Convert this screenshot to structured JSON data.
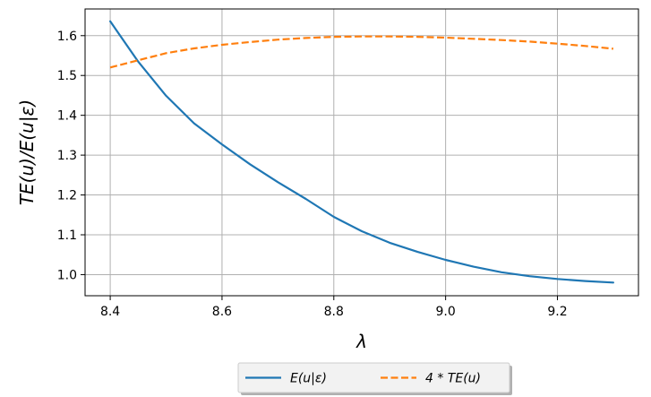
{
  "chart_data": {
    "type": "line",
    "title": "",
    "xlabel": "λ",
    "ylabel": "TE(u)/E(u|ε)",
    "xlim": [
      8.355,
      9.345
    ],
    "ylim": [
      0.947,
      1.667
    ],
    "x_ticks": [
      8.4,
      8.6,
      8.8,
      9.0,
      9.2
    ],
    "x_tick_labels": [
      "8.4",
      "8.6",
      "8.8",
      "9.0",
      "9.2"
    ],
    "y_ticks": [
      1.0,
      1.1,
      1.2,
      1.3,
      1.4,
      1.5,
      1.6
    ],
    "y_tick_labels": [
      "1.0",
      "1.1",
      "1.2",
      "1.3",
      "1.4",
      "1.5",
      "1.6"
    ],
    "grid": true,
    "legend_position": "below-center",
    "series": [
      {
        "name": "E(u|ε)",
        "color": "#1f77b4",
        "dash": "solid",
        "x": [
          8.4,
          8.45,
          8.5,
          8.55,
          8.6,
          8.65,
          8.7,
          8.75,
          8.8,
          8.85,
          8.9,
          8.95,
          9.0,
          9.05,
          9.1,
          9.15,
          9.2,
          9.25,
          9.3
        ],
        "values": [
          1.636,
          1.535,
          1.449,
          1.38,
          1.327,
          1.277,
          1.232,
          1.19,
          1.145,
          1.109,
          1.08,
          1.057,
          1.037,
          1.02,
          1.006,
          0.996,
          0.989,
          0.984,
          0.98
        ]
      },
      {
        "name": "4 * TE(u)",
        "color": "#ff7f0e",
        "dash": "dashed",
        "x": [
          8.4,
          8.45,
          8.5,
          8.55,
          8.6,
          8.65,
          8.7,
          8.75,
          8.8,
          8.85,
          8.9,
          8.95,
          9.0,
          9.05,
          9.1,
          9.15,
          9.2,
          9.25,
          9.3
        ],
        "values": [
          1.52,
          1.538,
          1.556,
          1.568,
          1.577,
          1.584,
          1.59,
          1.594,
          1.597,
          1.598,
          1.598,
          1.597,
          1.595,
          1.592,
          1.589,
          1.585,
          1.58,
          1.574,
          1.567
        ]
      }
    ]
  }
}
